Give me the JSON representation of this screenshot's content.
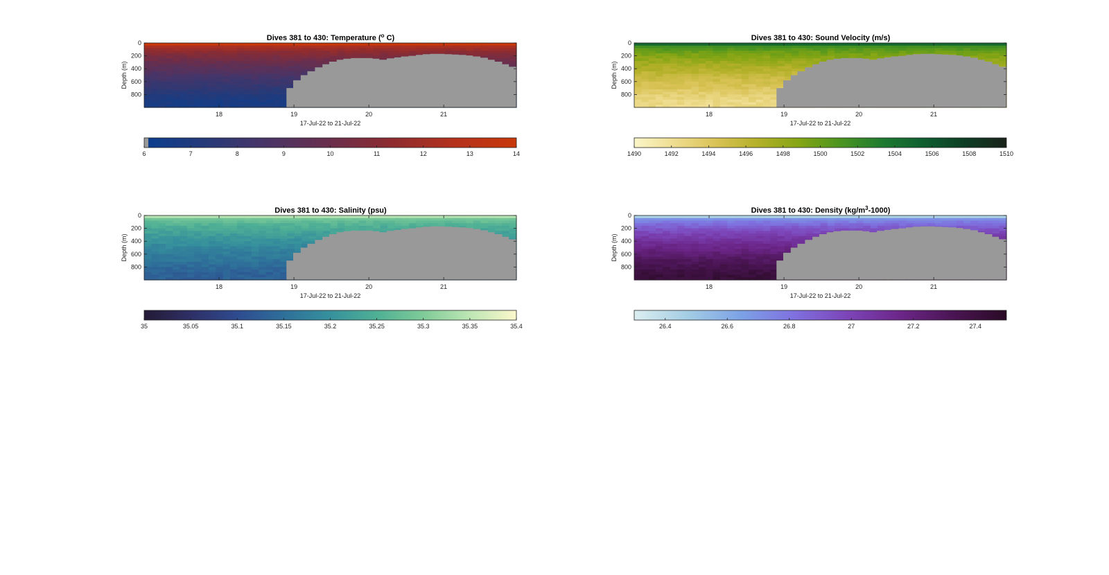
{
  "colors": {
    "background": "#ffffff",
    "terrain": "#999999",
    "axis": "#222222"
  },
  "chart_data": [
    {
      "type": "heatmap",
      "title": "Dives 381 to 430: Temperature (° C)",
      "title_parts": {
        "before": "Dives 381 to 430: Temperature (",
        "sup": "o",
        "after": " C)"
      },
      "xlabel": "17-Jul-22 to 21-Jul-22",
      "ylabel": "Depth (m)",
      "xlim": [
        17.0,
        21.97
      ],
      "ylim": [
        1000,
        0
      ],
      "x_ticks": [
        18,
        19,
        20,
        21
      ],
      "y_ticks": [
        0,
        200,
        400,
        600,
        800
      ],
      "colorbar": {
        "range": [
          6,
          14
        ],
        "ticks": [
          "6",
          "7",
          "8",
          "9",
          "10",
          "11",
          "12",
          "13",
          "14"
        ],
        "colormap": [
          "#0a3f8e",
          "#273a78",
          "#4a3466",
          "#6a2e4c",
          "#8e2c30",
          "#b4321c",
          "#c8380a"
        ]
      },
      "profile": {
        "surface": 13.5,
        "deep": 6.7
      },
      "grey_bottom_shade": true
    },
    {
      "type": "heatmap",
      "title": "Dives 381 to 430: Sound Velocity (m/s)",
      "title_parts": {
        "before": "Dives 381 to 430: Sound Velocity (m/s)",
        "sup": "",
        "after": ""
      },
      "xlabel": "17-Jul-22 to 21-Jul-22",
      "ylabel": "Depth (m)",
      "xlim": [
        17.0,
        21.97
      ],
      "ylim": [
        1000,
        0
      ],
      "x_ticks": [
        18,
        19,
        20,
        21
      ],
      "y_ticks": [
        0,
        200,
        400,
        600,
        800
      ],
      "colorbar": {
        "range": [
          1490,
          1510
        ],
        "ticks": [
          "1490",
          "1492",
          "1494",
          "1496",
          "1498",
          "1500",
          "1502",
          "1504",
          "1506",
          "1508",
          "1510"
        ],
        "colormap": [
          "#fbf6c8",
          "#eedc8e",
          "#d8c254",
          "#b3b028",
          "#84a514",
          "#4a9420",
          "#1e7b30",
          "#0e5e30",
          "#0d3e24",
          "#1a221a"
        ]
      },
      "profile": {
        "surface": 1503.5,
        "deep": 1492.5
      },
      "grey_bottom_shade": false
    },
    {
      "type": "heatmap",
      "title": "Dives 381 to 430: Salinity (psu)",
      "title_parts": {
        "before": "Dives 381 to 430: Salinity (psu)",
        "sup": "",
        "after": ""
      },
      "xlabel": "17-Jul-22 to 21-Jul-22",
      "ylabel": "Depth (m)",
      "xlim": [
        17.0,
        21.97
      ],
      "ylim": [
        1000,
        0
      ],
      "x_ticks": [
        18,
        19,
        20,
        21
      ],
      "y_ticks": [
        0,
        200,
        400,
        600,
        800
      ],
      "colorbar": {
        "range": [
          35,
          35.4
        ],
        "ticks": [
          "35",
          "35.05",
          "35.1",
          "35.15",
          "35.2",
          "35.25",
          "35.3",
          "35.35",
          "35.4"
        ],
        "colormap": [
          "#231a35",
          "#2e2f66",
          "#2e4b8f",
          "#2e6f9a",
          "#36919c",
          "#4fb095",
          "#7fcb98",
          "#bde6b4",
          "#fcf8cc"
        ]
      },
      "profile": {
        "surface": 35.32,
        "deep": 35.13
      },
      "grey_bottom_shade": false
    },
    {
      "type": "heatmap",
      "title": "Dives 381 to 430: Density (kg/m³-1000)",
      "title_parts": {
        "before": "Dives 381 to 430: Density (kg/m",
        "sup": "3",
        "after": "-1000)"
      },
      "xlabel": "17-Jul-22 to 21-Jul-22",
      "ylabel": "Depth (m)",
      "xlim": [
        17.0,
        21.97
      ],
      "ylim": [
        1000,
        0
      ],
      "x_ticks": [
        18,
        19,
        20,
        21
      ],
      "y_ticks": [
        0,
        200,
        400,
        600,
        800
      ],
      "colorbar": {
        "range": [
          26.3,
          27.5
        ],
        "ticks": [
          "26.4",
          "26.6",
          "26.8",
          "27",
          "27.2",
          "27.4"
        ],
        "colormap": [
          "#dbeef0",
          "#a4cde4",
          "#7ca2e6",
          "#7f71df",
          "#7c45b8",
          "#6c2689",
          "#4a1553",
          "#2a0a25"
        ]
      },
      "profile": {
        "surface": 26.55,
        "deep": 27.42
      },
      "grey_bottom_shade": false
    }
  ],
  "bottom_profile": {
    "x": [
      18.9,
      18.99,
      19.09,
      19.18,
      19.28,
      19.38,
      19.47,
      19.57,
      19.66,
      19.76,
      19.86,
      19.95,
      20.05,
      20.14,
      20.24,
      20.34,
      20.43,
      20.53,
      20.63,
      20.72,
      20.82,
      20.91,
      21.01,
      21.11,
      21.2,
      21.3,
      21.39,
      21.49,
      21.59,
      21.68,
      21.78,
      21.87,
      21.97
    ],
    "depth": [
      700,
      580,
      500,
      440,
      380,
      330,
      290,
      260,
      245,
      235,
      235,
      235,
      245,
      260,
      240,
      225,
      210,
      200,
      185,
      175,
      170,
      170,
      175,
      180,
      185,
      195,
      210,
      230,
      260,
      290,
      330,
      370,
      370
    ]
  }
}
